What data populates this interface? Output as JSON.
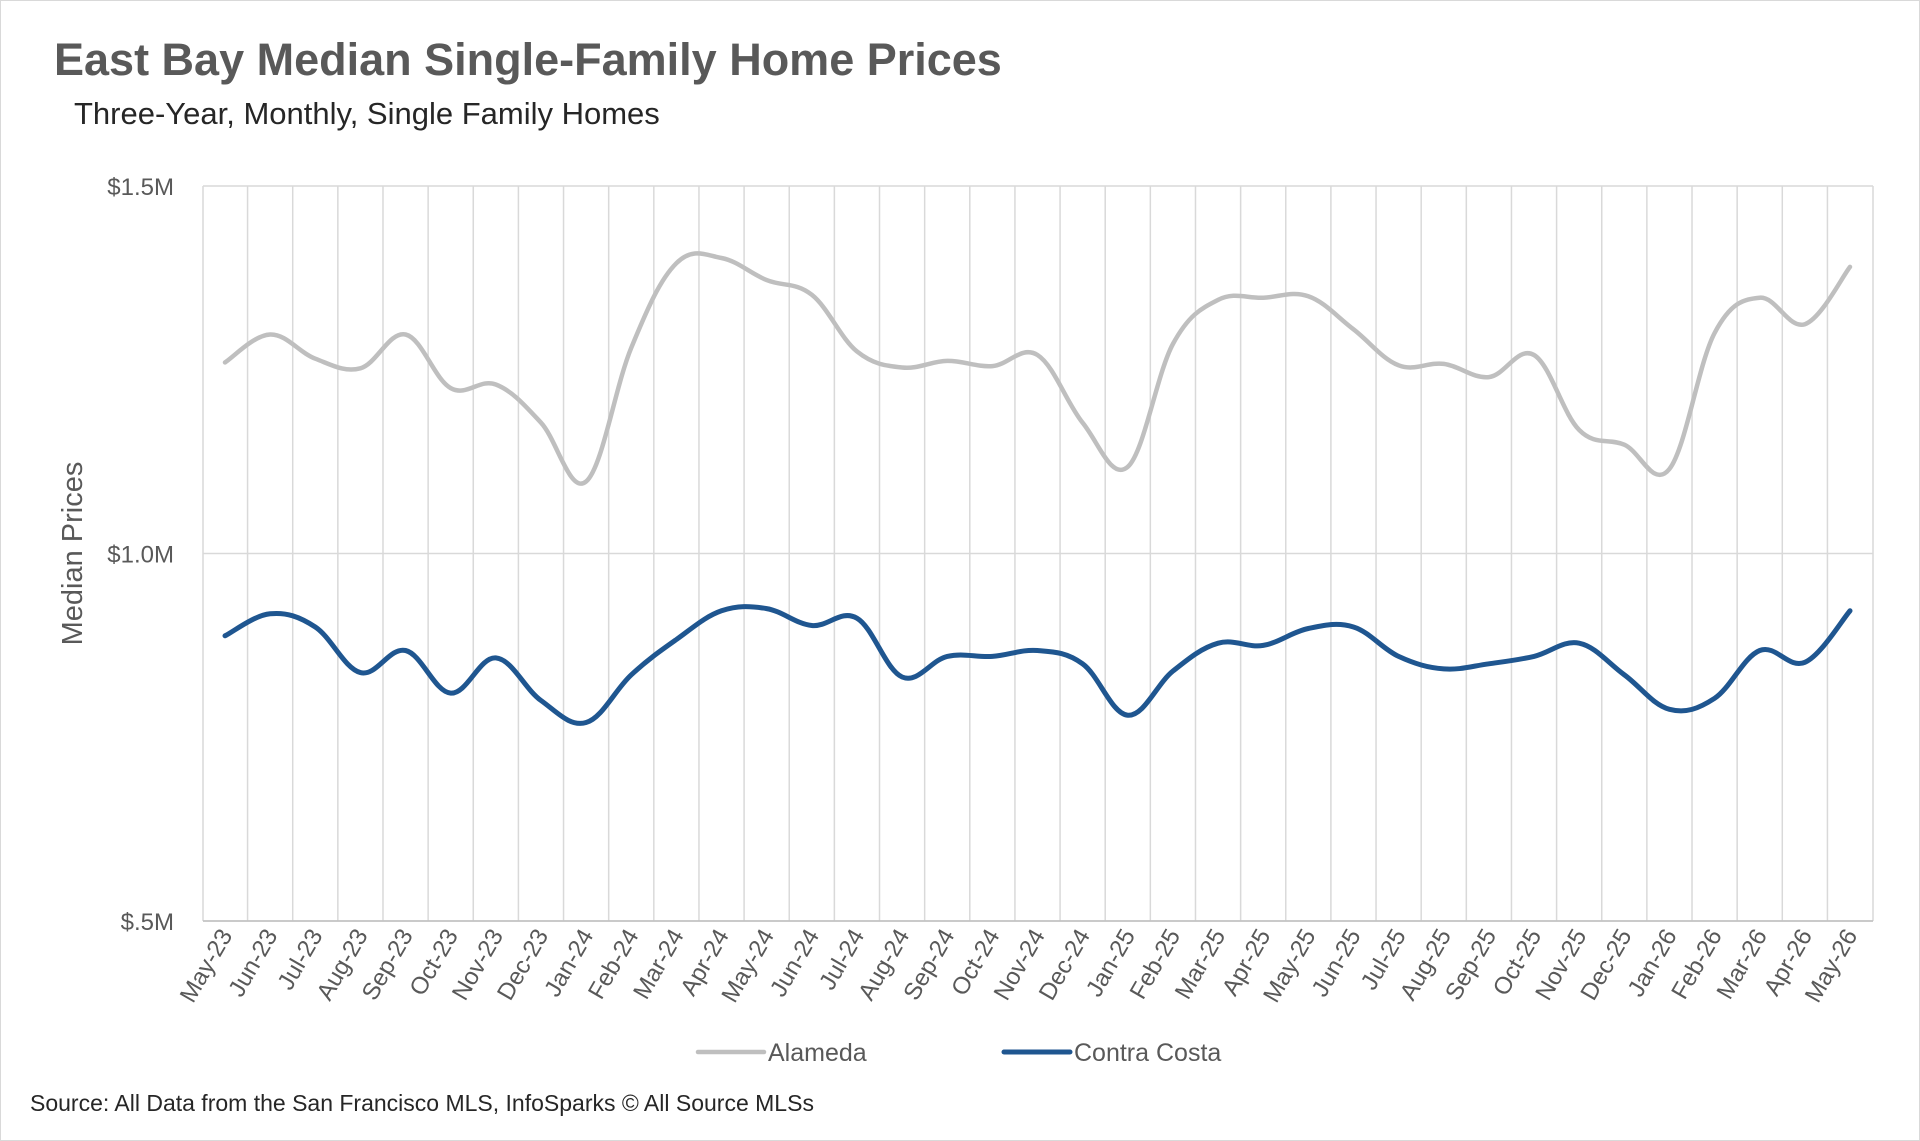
{
  "chart_data": {
    "type": "line",
    "title": "East Bay Median Single-Family Home Prices",
    "subtitle": "Three-Year, Monthly, Single Family Homes",
    "ylabel": "Median Prices",
    "xlabel": "",
    "ylim": [
      500000,
      1500000
    ],
    "yticks": [
      {
        "value": 500000,
        "label": "$.5M"
      },
      {
        "value": 1000000,
        "label": "$1.0M"
      },
      {
        "value": 1500000,
        "label": "$1.5M"
      }
    ],
    "categories": [
      "May-23",
      "Jun-23",
      "Jul-23",
      "Aug-23",
      "Sep-23",
      "Oct-23",
      "Nov-23",
      "Dec-23",
      "Jan-24",
      "Feb-24",
      "Mar-24",
      "Apr-24",
      "May-24",
      "Jun-24",
      "Jul-24",
      "Aug-24",
      "Sep-24",
      "Oct-24",
      "Nov-24",
      "Dec-24",
      "Jan-25",
      "Feb-25",
      "Mar-25",
      "Apr-25",
      "May-25",
      "Jun-25",
      "Jul-25",
      "Aug-25",
      "Sep-25",
      "Oct-25",
      "Nov-25",
      "Dec-25",
      "Jan-26",
      "Feb-26",
      "Mar-26",
      "Apr-26",
      "May-26"
    ],
    "grid": "vertical",
    "legend_position": "bottom",
    "series": [
      {
        "name": "Alameda",
        "color": "#bfbfbf",
        "values": [
          1260000,
          1298000,
          1265000,
          1252000,
          1298000,
          1225000,
          1230000,
          1178000,
          1098000,
          1280000,
          1395000,
          1402000,
          1372000,
          1352000,
          1275000,
          1253000,
          1262000,
          1255000,
          1270000,
          1178000,
          1118000,
          1285000,
          1345000,
          1348000,
          1350000,
          1305000,
          1256000,
          1258000,
          1240000,
          1270000,
          1168000,
          1148000,
          1115000,
          1300000,
          1348000,
          1312000,
          1390000
        ]
      },
      {
        "name": "Contra Costa",
        "color": "#1f5690",
        "values": [
          888000,
          918000,
          900000,
          838000,
          868000,
          810000,
          858000,
          800000,
          770000,
          835000,
          883000,
          922000,
          925000,
          902000,
          912000,
          832000,
          860000,
          860000,
          868000,
          850000,
          780000,
          840000,
          878000,
          875000,
          898000,
          900000,
          860000,
          843000,
          850000,
          860000,
          878000,
          835000,
          788000,
          803000,
          868000,
          852000,
          922000
        ]
      }
    ]
  },
  "source": "Source: All Data from the San Francisco MLS, InfoSparks © All Source MLSs"
}
